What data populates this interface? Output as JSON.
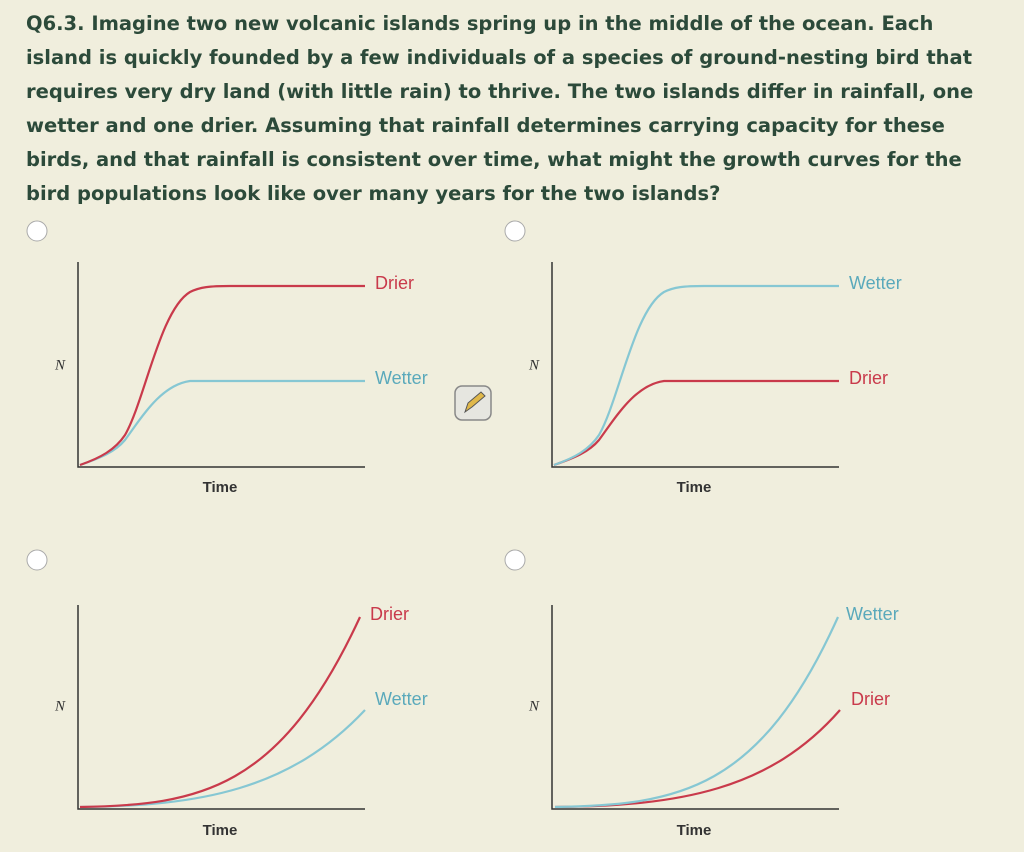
{
  "question": "Q6.3. Imagine two new volcanic islands spring up in the middle of the ocean. Each island is quickly founded by a few individuals of a species of ground-nesting bird that requires very dry land (with little rain) to thrive. The two islands differ in rainfall, one wetter and one drier. Assuming that rainfall determines carrying capacity for these birds, and that rainfall is consistent over time, what might the growth curves for the bird populations look like over many years for the two islands?",
  "options": [
    {
      "y_label": "N",
      "x_label": "Time",
      "upper_label": "Drier",
      "lower_label": "Wetter"
    },
    {
      "y_label": "N",
      "x_label": "Time",
      "upper_label": "Wetter",
      "lower_label": "Drier"
    },
    {
      "y_label": "N",
      "x_label": "Time",
      "upper_label": "Drier",
      "lower_label": "Wetter"
    },
    {
      "y_label": "N",
      "x_label": "Time",
      "upper_label": "Wetter",
      "lower_label": "Drier"
    }
  ]
}
